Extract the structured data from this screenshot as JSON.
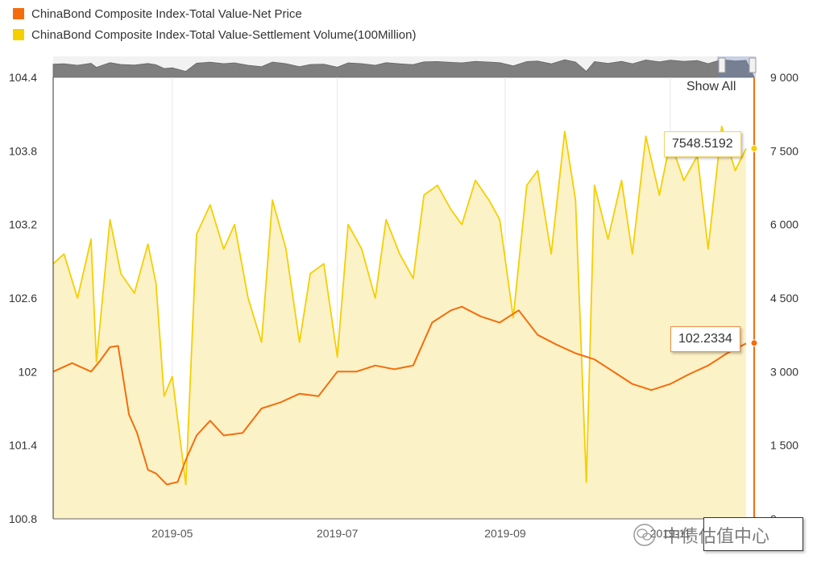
{
  "legend": [
    {
      "label": "ChinaBond Composite Index-Total Value-Net Price",
      "color": "#f46d0c"
    },
    {
      "label": "ChinaBond Composite Index-Total Value-Settlement Volume(100Million)",
      "color": "#f5cf00"
    }
  ],
  "controls": {
    "show_all": "Show All"
  },
  "tooltips": {
    "volume": "7548.5192",
    "price": "102.2334",
    "date": ""
  },
  "watermark": {
    "text": "中债估值中心",
    "icon": "wechat-icon"
  },
  "colors": {
    "price": "#f46d0c",
    "volume": "#f5cf00",
    "volume_fill": "#fcf2c7",
    "navigator": "#7f7f7f"
  },
  "chart_data": {
    "type": "line",
    "x_ticks": [
      "2019-05",
      "2019-07",
      "2019-09",
      "2019-11"
    ],
    "y_left": {
      "ticks": [
        "100.8",
        "101.4",
        "102",
        "102.6",
        "103.2",
        "103.8",
        "104.4"
      ],
      "range": [
        100.8,
        104.4
      ]
    },
    "y_right": {
      "ticks": [
        "0",
        "1 500",
        "3 000",
        "4 500",
        "6 000",
        "7 500",
        "9 000"
      ],
      "range": [
        0,
        9000
      ]
    },
    "x_range": [
      "2019-03-18",
      "2019-12-02"
    ],
    "series": [
      {
        "name": "ChinaBond Composite Index-Total Value-Net Price",
        "axis": "left",
        "x": [
          "2019-03-18",
          "2019-03-25",
          "2019-04-01",
          "2019-04-04",
          "2019-04-08",
          "2019-04-11",
          "2019-04-15",
          "2019-04-18",
          "2019-04-22",
          "2019-04-25",
          "2019-04-29",
          "2019-05-03",
          "2019-05-06",
          "2019-05-10",
          "2019-05-15",
          "2019-05-20",
          "2019-05-27",
          "2019-06-03",
          "2019-06-10",
          "2019-06-17",
          "2019-06-24",
          "2019-07-01",
          "2019-07-08",
          "2019-07-15",
          "2019-07-22",
          "2019-07-29",
          "2019-08-05",
          "2019-08-12",
          "2019-08-16",
          "2019-08-23",
          "2019-08-30",
          "2019-09-06",
          "2019-09-13",
          "2019-09-20",
          "2019-09-27",
          "2019-10-04",
          "2019-10-11",
          "2019-10-18",
          "2019-10-25",
          "2019-11-01",
          "2019-11-08",
          "2019-11-15",
          "2019-11-22",
          "2019-11-29"
        ],
        "values": [
          102.0,
          102.07,
          102.0,
          102.08,
          102.2,
          102.21,
          101.65,
          101.5,
          101.2,
          101.17,
          101.08,
          101.1,
          101.28,
          101.48,
          101.6,
          101.48,
          101.5,
          101.7,
          101.75,
          101.82,
          101.8,
          102.0,
          102.0,
          102.05,
          102.02,
          102.05,
          102.4,
          102.5,
          102.53,
          102.45,
          102.4,
          102.5,
          102.3,
          102.22,
          102.15,
          102.1,
          102.0,
          101.9,
          101.85,
          101.9,
          101.98,
          102.05,
          102.15,
          102.23
        ]
      },
      {
        "name": "ChinaBond Composite Index-Total Value-Settlement Volume(100Million)",
        "axis": "right",
        "x": [
          "2019-03-18",
          "2019-03-22",
          "2019-03-27",
          "2019-04-01",
          "2019-04-03",
          "2019-04-08",
          "2019-04-12",
          "2019-04-17",
          "2019-04-22",
          "2019-04-25",
          "2019-04-28",
          "2019-05-01",
          "2019-05-06",
          "2019-05-10",
          "2019-05-15",
          "2019-05-20",
          "2019-05-24",
          "2019-05-29",
          "2019-06-03",
          "2019-06-07",
          "2019-06-12",
          "2019-06-17",
          "2019-06-21",
          "2019-06-26",
          "2019-07-01",
          "2019-07-05",
          "2019-07-10",
          "2019-07-15",
          "2019-07-19",
          "2019-07-24",
          "2019-07-29",
          "2019-08-02",
          "2019-08-07",
          "2019-08-12",
          "2019-08-16",
          "2019-08-21",
          "2019-08-26",
          "2019-08-30",
          "2019-09-04",
          "2019-09-09",
          "2019-09-13",
          "2019-09-18",
          "2019-09-23",
          "2019-09-27",
          "2019-10-01",
          "2019-10-04",
          "2019-10-09",
          "2019-10-14",
          "2019-10-18",
          "2019-10-23",
          "2019-10-28",
          "2019-11-01",
          "2019-11-06",
          "2019-11-11",
          "2019-11-15",
          "2019-11-20",
          "2019-11-25",
          "2019-11-29"
        ],
        "values": [
          5200,
          5400,
          4500,
          5700,
          3200,
          6100,
          5000,
          4600,
          5600,
          4800,
          2500,
          2900,
          700,
          5800,
          6400,
          5500,
          6000,
          4500,
          3600,
          6500,
          5500,
          3600,
          5000,
          5200,
          3300,
          6000,
          5500,
          4500,
          6100,
          5400,
          4900,
          6600,
          6800,
          6300,
          6000,
          6900,
          6500,
          6100,
          4100,
          6800,
          7100,
          5400,
          7900,
          6500,
          750,
          6800,
          5700,
          6900,
          5400,
          7800,
          6600,
          7700,
          6900,
          7400,
          5500,
          8000,
          7100,
          7548.5192
        ]
      }
    ],
    "tooltip_values": {
      "volume": 7548.5192,
      "price": 102.2334
    }
  }
}
